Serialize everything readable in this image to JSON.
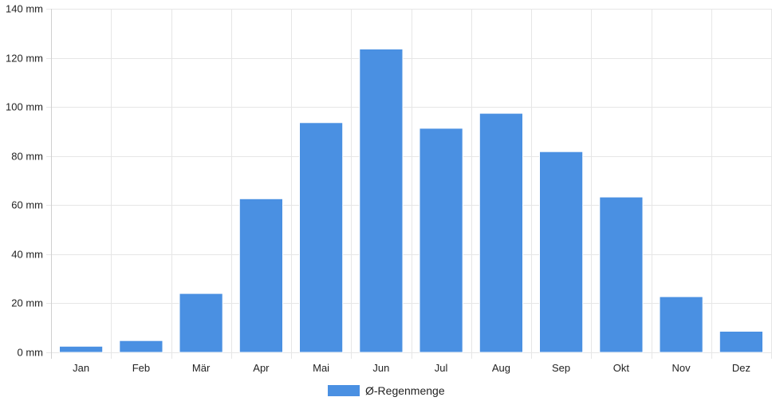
{
  "chart_data": {
    "type": "bar",
    "categories": [
      "Jan",
      "Feb",
      "Mär",
      "Apr",
      "Mai",
      "Jun",
      "Jul",
      "Aug",
      "Sep",
      "Okt",
      "Nov",
      "Dez"
    ],
    "series": [
      {
        "name": "Ø-Regenmenge",
        "values": [
          2.5,
          4.8,
          24,
          62.6,
          93.6,
          123.6,
          91.3,
          97.4,
          81.8,
          63.3,
          22.7,
          8.6
        ],
        "color": "#4a90e2"
      }
    ],
    "y_unit": "mm",
    "ylim": [
      0,
      140
    ],
    "y_ticks": [
      0,
      20,
      40,
      60,
      80,
      100,
      120,
      140
    ],
    "grid": true,
    "legend_position": "bottom-center"
  }
}
